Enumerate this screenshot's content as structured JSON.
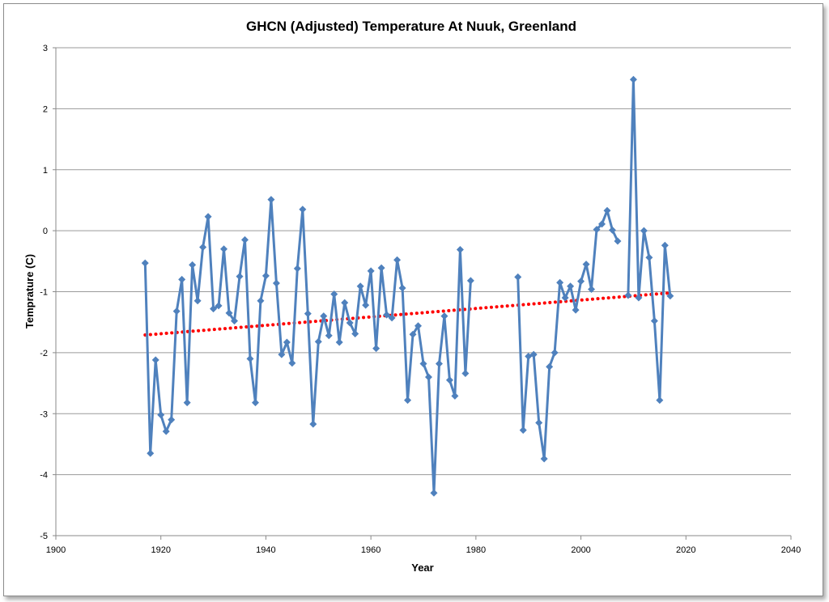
{
  "chart_data": {
    "type": "line",
    "title": "GHCN (Adjusted) Temperature At Nuuk, Greenland",
    "xlabel": "Year",
    "ylabel": "Temprature (C)",
    "xlim": [
      1900,
      2040
    ],
    "ylim": [
      -5,
      3
    ],
    "xticks": [
      1900,
      1920,
      1940,
      1960,
      1980,
      2000,
      2020,
      2040
    ],
    "yticks": [
      -5,
      -4,
      -3,
      -2,
      -1,
      0,
      1,
      2,
      3
    ],
    "grid": "horizontal",
    "legend": "none",
    "series": [
      {
        "color": "#4f81bd",
        "marker": "diamond",
        "segments": [
          [
            [
              1917,
              -0.53
            ],
            [
              1918,
              -3.65
            ],
            [
              1919,
              -2.12
            ],
            [
              1920,
              -3.02
            ],
            [
              1921,
              -3.29
            ],
            [
              1922,
              -3.1
            ],
            [
              1923,
              -1.32
            ],
            [
              1924,
              -0.8
            ],
            [
              1925,
              -2.82
            ],
            [
              1926,
              -0.56
            ],
            [
              1927,
              -1.15
            ],
            [
              1928,
              -0.27
            ],
            [
              1929,
              0.23
            ],
            [
              1930,
              -1.28
            ],
            [
              1931,
              -1.23
            ],
            [
              1932,
              -0.3
            ],
            [
              1933,
              -1.35
            ],
            [
              1934,
              -1.48
            ],
            [
              1935,
              -0.75
            ],
            [
              1936,
              -0.15
            ],
            [
              1937,
              -2.1
            ],
            [
              1938,
              -2.82
            ],
            [
              1939,
              -1.15
            ],
            [
              1940,
              -0.74
            ],
            [
              1941,
              0.51
            ],
            [
              1942,
              -0.86
            ],
            [
              1943,
              -2.03
            ],
            [
              1944,
              -1.83
            ],
            [
              1945,
              -2.17
            ],
            [
              1946,
              -0.62
            ],
            [
              1947,
              0.35
            ],
            [
              1948,
              -1.36
            ],
            [
              1949,
              -3.17
            ],
            [
              1950,
              -1.82
            ],
            [
              1951,
              -1.4
            ],
            [
              1952,
              -1.72
            ],
            [
              1953,
              -1.04
            ],
            [
              1954,
              -1.83
            ],
            [
              1955,
              -1.18
            ],
            [
              1956,
              -1.51
            ],
            [
              1957,
              -1.69
            ],
            [
              1958,
              -0.91
            ],
            [
              1959,
              -1.22
            ],
            [
              1960,
              -0.66
            ],
            [
              1961,
              -1.93
            ],
            [
              1962,
              -0.61
            ],
            [
              1963,
              -1.38
            ],
            [
              1964,
              -1.43
            ],
            [
              1965,
              -0.48
            ],
            [
              1966,
              -0.94
            ],
            [
              1967,
              -2.78
            ],
            [
              1968,
              -1.7
            ],
            [
              1969,
              -1.56
            ],
            [
              1970,
              -2.18
            ],
            [
              1971,
              -2.4
            ],
            [
              1972,
              -4.3
            ],
            [
              1973,
              -2.18
            ],
            [
              1974,
              -1.4
            ],
            [
              1975,
              -2.45
            ],
            [
              1976,
              -2.71
            ],
            [
              1977,
              -0.31
            ],
            [
              1978,
              -2.34
            ],
            [
              1979,
              -0.82
            ]
          ],
          [
            [
              1988,
              -0.76
            ],
            [
              1989,
              -3.27
            ],
            [
              1990,
              -2.06
            ],
            [
              1991,
              -2.03
            ],
            [
              1992,
              -3.15
            ],
            [
              1993,
              -3.74
            ],
            [
              1994,
              -2.23
            ],
            [
              1995,
              -2.0
            ],
            [
              1996,
              -0.85
            ],
            [
              1997,
              -1.1
            ],
            [
              1998,
              -0.91
            ],
            [
              1999,
              -1.3
            ],
            [
              2000,
              -0.83
            ],
            [
              2001,
              -0.55
            ],
            [
              2002,
              -0.96
            ],
            [
              2003,
              0.02
            ],
            [
              2004,
              0.11
            ],
            [
              2005,
              0.33
            ],
            [
              2006,
              0.01
            ],
            [
              2007,
              -0.17
            ]
          ],
          [
            [
              2009,
              -1.06
            ],
            [
              2010,
              2.48
            ],
            [
              2011,
              -1.1
            ],
            [
              2012,
              0.0
            ],
            [
              2013,
              -0.44
            ],
            [
              2014,
              -1.48
            ],
            [
              2015,
              -2.78
            ],
            [
              2016,
              -0.24
            ],
            [
              2017,
              -1.07
            ]
          ]
        ]
      }
    ],
    "trendline": {
      "type": "linear",
      "style": "dotted",
      "color": "#ff0000",
      "start": [
        1917,
        -1.71
      ],
      "end": [
        2017,
        -1.02
      ]
    }
  }
}
